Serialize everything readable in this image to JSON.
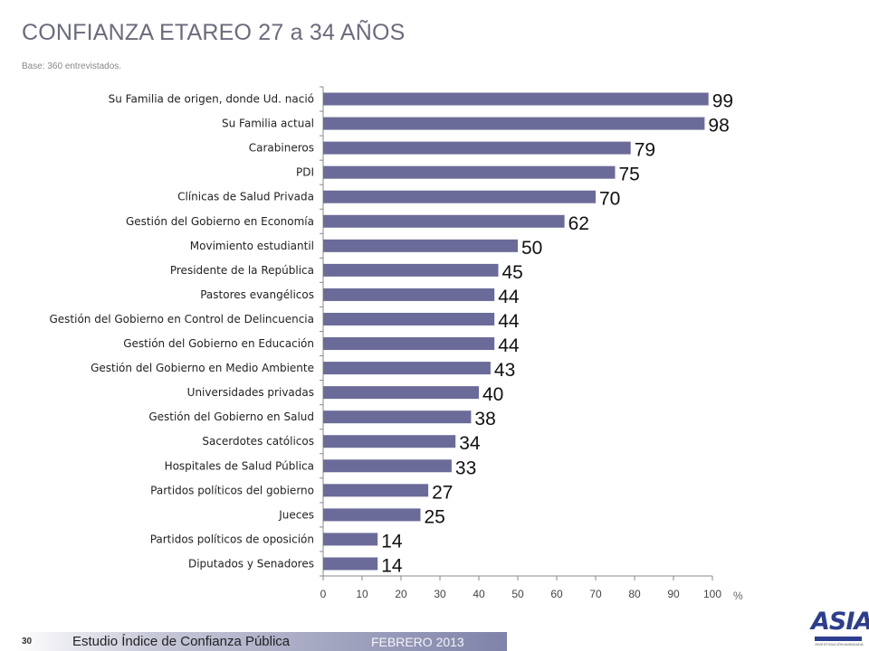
{
  "page": {
    "title": "CONFIANZA ETAREO 27 a 34 AÑOS",
    "base": "Base:  360 entrevistados."
  },
  "footer": {
    "page_number": "30",
    "study": "Estudio  Índice de Confianza Pública",
    "date": "FEBRERO 2013",
    "logo_sub": "INVESTIGACIÓN AVANZADA"
  },
  "colors": {
    "bar": "#6b6b99",
    "axis": "#888888",
    "title": "#6b6b7d"
  },
  "chart_data": {
    "type": "bar",
    "orientation": "horizontal",
    "categories": [
      "Su Familia de origen, donde Ud. nació",
      "Su Familia actual",
      "Carabineros",
      "PDI",
      "Clínicas de Salud Privada",
      "Gestión del Gobierno en Economía",
      "Movimiento estudiantil",
      "Presidente de la República",
      "Pastores evangélicos",
      "Gestión del Gobierno en Control de Delincuencia",
      "Gestión del Gobierno en Educación",
      "Gestión del Gobierno en Medio Ambiente",
      "Universidades privadas",
      "Gestión del Gobierno en Salud",
      "Sacerdotes católicos",
      "Hospitales de Salud Pública",
      "Partidos políticos del gobierno",
      "Jueces",
      "Partidos políticos de oposición",
      "Diputados y Senadores"
    ],
    "values": [
      99,
      98,
      79,
      75,
      70,
      62,
      50,
      45,
      44,
      44,
      44,
      43,
      40,
      38,
      34,
      33,
      27,
      25,
      14,
      14
    ],
    "xlim": [
      0,
      100
    ],
    "xticks": [
      0,
      10,
      20,
      30,
      40,
      50,
      60,
      70,
      80,
      90,
      100
    ],
    "xlabel": "%",
    "grid": false,
    "legend": "none"
  }
}
